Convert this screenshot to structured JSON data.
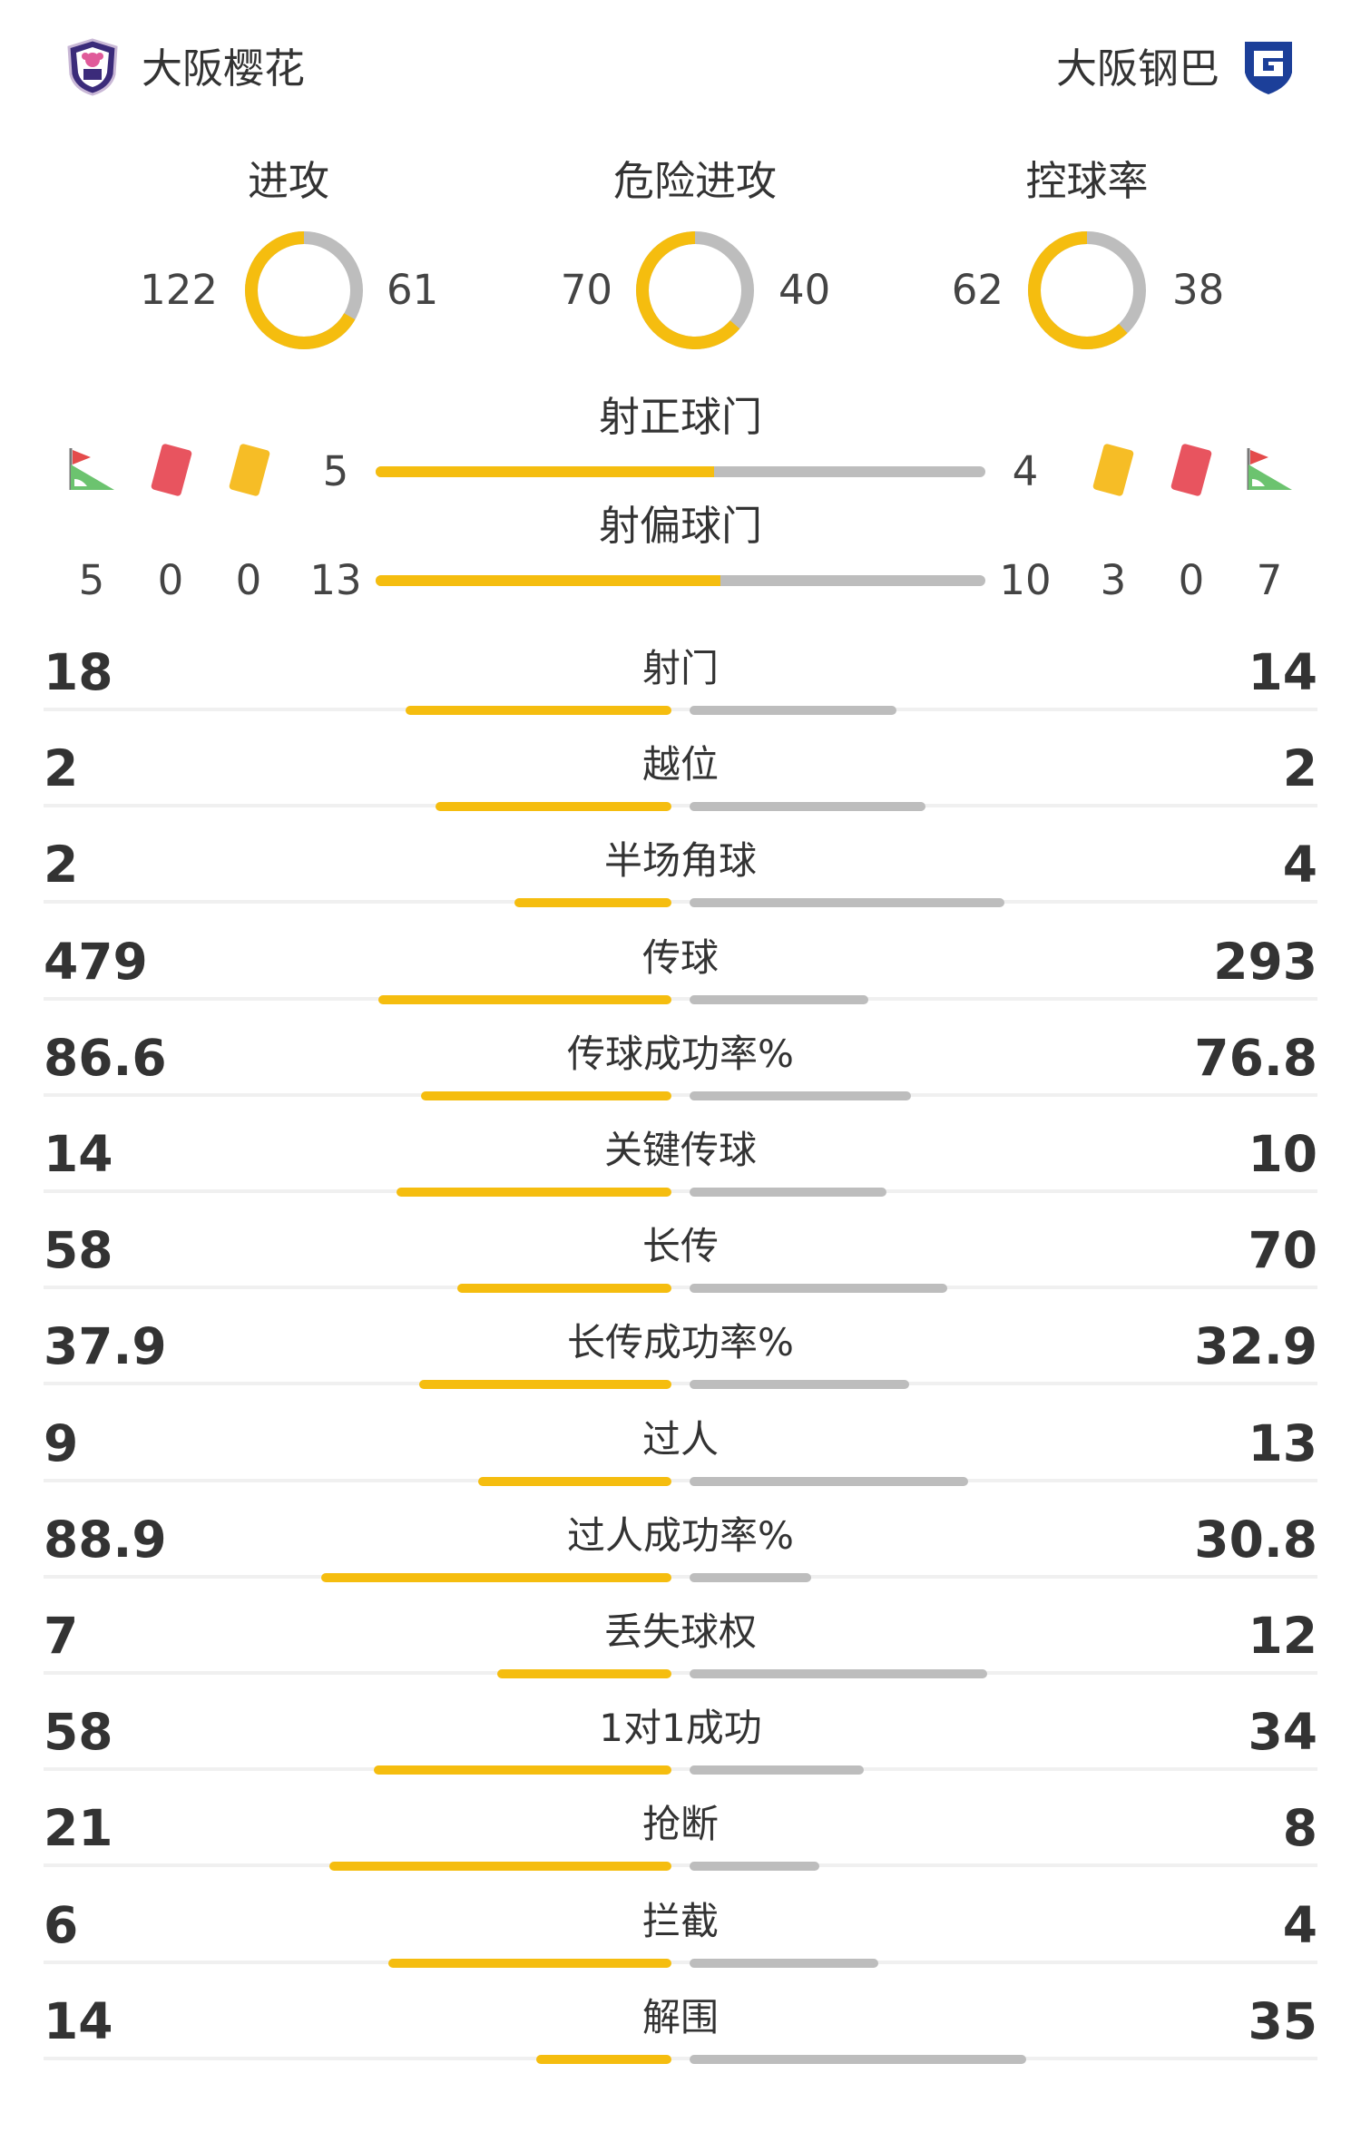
{
  "header": {
    "home_team": "大阪樱花",
    "away_team": "大阪钢巴",
    "home_logo_icon": "cerezo-osaka-crest-icon",
    "away_logo_icon": "gamba-osaka-crest-icon"
  },
  "colors": {
    "home": "#f5bd0f",
    "away": "#bdbdbd",
    "card_red": "#e8545f",
    "card_yellow": "#f6bd26"
  },
  "donuts": [
    {
      "title": "进攻",
      "home": 122,
      "away": 61
    },
    {
      "title": "危险进攻",
      "home": 70,
      "away": 40
    },
    {
      "title": "控球率",
      "home": 62,
      "away": 38
    }
  ],
  "shots": {
    "on_target": {
      "title": "射正球门",
      "home": "5",
      "away": "4",
      "home_share": 0.5556
    },
    "off_target": {
      "title": "射偏球门",
      "home": "13",
      "away": "10",
      "home_share": 0.5652
    }
  },
  "events": {
    "icons": [
      "corner-flag-icon",
      "red-card-icon",
      "yellow-card-icon"
    ],
    "home": {
      "corners": "5",
      "red": "0",
      "yellow": "0"
    },
    "away": {
      "corners": "7",
      "red": "0",
      "yellow": "3"
    }
  },
  "stats": [
    {
      "label": "射门",
      "home": "18",
      "away": "14",
      "home_share": 0.5625
    },
    {
      "label": "越位",
      "home": "2",
      "away": "2",
      "home_share": 0.5
    },
    {
      "label": "半场角球",
      "home": "2",
      "away": "4",
      "home_share": 0.3333
    },
    {
      "label": "传球",
      "home": "479",
      "away": "293",
      "home_share": 0.6205
    },
    {
      "label": "传球成功率%",
      "home": "86.6",
      "away": "76.8",
      "home_share": 0.53
    },
    {
      "label": "关键传球",
      "home": "14",
      "away": "10",
      "home_share": 0.5833
    },
    {
      "label": "长传",
      "home": "58",
      "away": "70",
      "home_share": 0.4531
    },
    {
      "label": "长传成功率%",
      "home": "37.9",
      "away": "32.9",
      "home_share": 0.5353
    },
    {
      "label": "过人",
      "home": "9",
      "away": "13",
      "home_share": 0.4091
    },
    {
      "label": "过人成功率%",
      "home": "88.9",
      "away": "30.8",
      "home_share": 0.7427
    },
    {
      "label": "丢失球权",
      "home": "7",
      "away": "12",
      "home_share": 0.3684
    },
    {
      "label": "1对1成功",
      "home": "58",
      "away": "34",
      "home_share": 0.6304
    },
    {
      "label": "抢断",
      "home": "21",
      "away": "8",
      "home_share": 0.7241
    },
    {
      "label": "拦截",
      "home": "6",
      "away": "4",
      "home_share": 0.6
    },
    {
      "label": "解围",
      "home": "14",
      "away": "35",
      "home_share": 0.2857
    }
  ]
}
